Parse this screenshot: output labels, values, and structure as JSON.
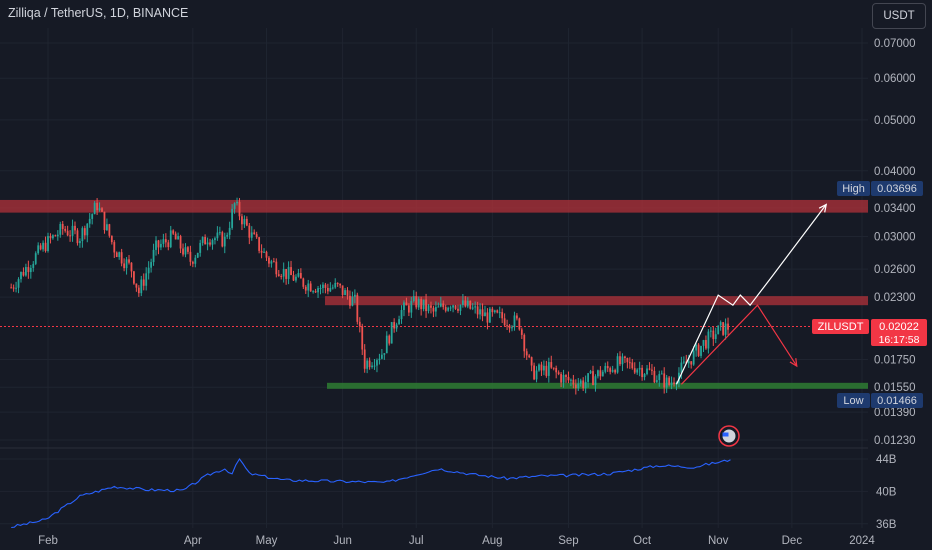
{
  "header": {
    "title": "Zilliqa / TetherUS, 1D, BINANCE",
    "currency_label": "USDT"
  },
  "colors": {
    "background": "#161a25",
    "up_candle": "#26a69a",
    "down_candle": "#ef5350",
    "resistance_zone": "#b2323a",
    "support_zone": "#2e7d32",
    "projection_white": "#ffffff",
    "projection_red": "#f23645",
    "indicator_line": "#2962ff",
    "axis_text": "#b2b5be",
    "price_tag": "#f23645",
    "marker_tag": "#1e3a6e"
  },
  "badges": {
    "high_label": "High",
    "high_value": "0.03696",
    "low_label": "Low",
    "low_value": "0.01466",
    "symbol_label": "ZILUSDT",
    "last_value": "0.02022",
    "countdown": "16:17:58"
  },
  "chart_data": [
    {
      "type": "candlestick",
      "title": "Zilliqa / TetherUS, 1D, BINANCE",
      "y_scale": "log",
      "y_ticks": [
        "0.07000",
        "0.06000",
        "0.05000",
        "0.04000",
        "0.03400",
        "0.03000",
        "0.02600",
        "0.02300",
        "0.01750",
        "0.01550",
        "0.01390",
        "0.01230"
      ],
      "x_ticks": [
        "Feb",
        "Apr",
        "May",
        "Jun",
        "Jul",
        "Aug",
        "Sep",
        "Oct",
        "Nov",
        "Dec",
        "2024"
      ],
      "high": 0.03696,
      "low": 0.01466,
      "last": 0.02022,
      "zones": [
        {
          "kind": "resistance",
          "from": 0.0333,
          "to": 0.0352
        },
        {
          "kind": "resistance",
          "from": 0.0222,
          "to": 0.0231
        },
        {
          "kind": "support",
          "from": 0.0154,
          "to": 0.0158
        }
      ],
      "series": [
        {
          "points": [
            {
              "x": "Jan 17",
              "y": 0.024
            },
            {
              "x": "Jan 24",
              "y": 0.0265
            },
            {
              "x": "Jan 31",
              "y": 0.029
            },
            {
              "x": "Feb 7",
              "y": 0.031
            },
            {
              "x": "Feb 14",
              "y": 0.03
            },
            {
              "x": "Feb 21",
              "y": 0.0345
            },
            {
              "x": "Feb 28",
              "y": 0.0285
            },
            {
              "x": "Mar 7",
              "y": 0.026
            },
            {
              "x": "Mar 10",
              "y": 0.0235
            },
            {
              "x": "Mar 17",
              "y": 0.0285
            },
            {
              "x": "Mar 24",
              "y": 0.03
            },
            {
              "x": "Mar 31",
              "y": 0.027
            },
            {
              "x": "Apr 7",
              "y": 0.03
            },
            {
              "x": "Apr 14",
              "y": 0.0295
            },
            {
              "x": "Apr 18",
              "y": 0.0345
            },
            {
              "x": "Apr 25",
              "y": 0.03
            },
            {
              "x": "May 2",
              "y": 0.027
            },
            {
              "x": "May 9",
              "y": 0.0255
            },
            {
              "x": "May 16",
              "y": 0.0245
            },
            {
              "x": "May 23",
              "y": 0.024
            },
            {
              "x": "May 30",
              "y": 0.024
            },
            {
              "x": "Jun 6",
              "y": 0.0225
            },
            {
              "x": "Jun 10",
              "y": 0.0172
            },
            {
              "x": "Jun 17",
              "y": 0.018
            },
            {
              "x": "Jun 24",
              "y": 0.0215
            },
            {
              "x": "Jul 1",
              "y": 0.0225
            },
            {
              "x": "Jul 8",
              "y": 0.0215
            },
            {
              "x": "Jul 15",
              "y": 0.0225
            },
            {
              "x": "Jul 22",
              "y": 0.022
            },
            {
              "x": "Jul 29",
              "y": 0.0212
            },
            {
              "x": "Aug 5",
              "y": 0.021
            },
            {
              "x": "Aug 12",
              "y": 0.0205
            },
            {
              "x": "Aug 17",
              "y": 0.0165
            },
            {
              "x": "Aug 24",
              "y": 0.0168
            },
            {
              "x": "Aug 31",
              "y": 0.016
            },
            {
              "x": "Sep 7",
              "y": 0.0158
            },
            {
              "x": "Sep 14",
              "y": 0.0165
            },
            {
              "x": "Sep 21",
              "y": 0.0172
            },
            {
              "x": "Sep 28",
              "y": 0.017
            },
            {
              "x": "Oct 5",
              "y": 0.0165
            },
            {
              "x": "Oct 12",
              "y": 0.0157
            },
            {
              "x": "Oct 19",
              "y": 0.0172
            },
            {
              "x": "Oct 26",
              "y": 0.0188
            },
            {
              "x": "Nov 2",
              "y": 0.02
            },
            {
              "x": "Nov 6",
              "y": 0.0202
            }
          ]
        }
      ],
      "projection_white": [
        {
          "x": "Oct 15",
          "y": 0.0157
        },
        {
          "x": "Nov 1",
          "y": 0.0232
        },
        {
          "x": "Nov 7",
          "y": 0.0222
        },
        {
          "x": "Nov 10",
          "y": 0.0232
        },
        {
          "x": "Nov 14",
          "y": 0.0222
        },
        {
          "x": "Nov 23",
          "y": 0.0252
        },
        {
          "x": "Dec 15",
          "y": 0.0345
        }
      ],
      "projection_red": [
        {
          "x": "Oct 17",
          "y": 0.0157
        },
        {
          "x": "Nov 17",
          "y": 0.0222
        },
        {
          "x": "Dec 3",
          "y": 0.017
        }
      ]
    },
    {
      "type": "line",
      "y_ticks": [
        "44B",
        "40B",
        "36B"
      ],
      "series": [
        {
          "points": [
            {
              "x": "Jan 17",
              "y": 35.6
            },
            {
              "x": "Jan 31",
              "y": 36.5
            },
            {
              "x": "Feb 14",
              "y": 39.4
            },
            {
              "x": "Feb 28",
              "y": 40.6
            },
            {
              "x": "Mar 14",
              "y": 40.2
            },
            {
              "x": "Mar 28",
              "y": 40.1
            },
            {
              "x": "Apr 7",
              "y": 42.0
            },
            {
              "x": "Apr 14",
              "y": 42.8
            },
            {
              "x": "Apr 17",
              "y": 42.2
            },
            {
              "x": "Apr 20",
              "y": 44.0
            },
            {
              "x": "Apr 24",
              "y": 42.2
            },
            {
              "x": "May 8",
              "y": 41.4
            },
            {
              "x": "May 22",
              "y": 41.3
            },
            {
              "x": "Jun 5",
              "y": 41.2
            },
            {
              "x": "Jun 19",
              "y": 41.1
            },
            {
              "x": "Jul 1",
              "y": 42.1
            },
            {
              "x": "Jul 10",
              "y": 42.8
            },
            {
              "x": "Jul 24",
              "y": 42.1
            },
            {
              "x": "Aug 7",
              "y": 41.6
            },
            {
              "x": "Aug 21",
              "y": 41.9
            },
            {
              "x": "Sep 4",
              "y": 42.0
            },
            {
              "x": "Sep 18",
              "y": 42.2
            },
            {
              "x": "Sep 28",
              "y": 42.7
            },
            {
              "x": "Oct 8",
              "y": 43.2
            },
            {
              "x": "Oct 22",
              "y": 43.0
            },
            {
              "x": "Nov 6",
              "y": 43.9
            }
          ]
        }
      ]
    }
  ]
}
